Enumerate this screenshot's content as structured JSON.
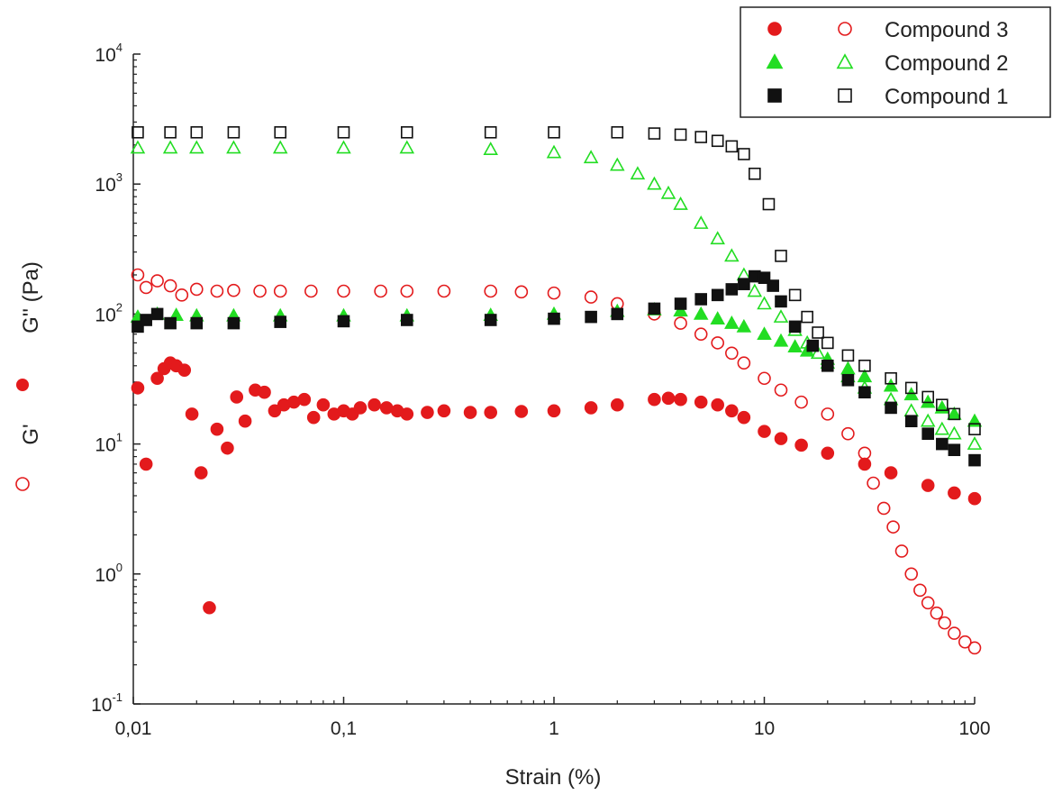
{
  "chart_data": {
    "type": "scatter",
    "xlabel": "Strain (%)",
    "ylabel_left_top": "G'' (Pa)",
    "ylabel_left_bottom": "G'",
    "xscale": "log",
    "yscale": "log",
    "xlim": [
      0.01,
      100
    ],
    "ylim": [
      0.1,
      10000
    ],
    "x_ticks": [
      {
        "value": 0.01,
        "label": "0,01"
      },
      {
        "value": 0.1,
        "label": "0,1"
      },
      {
        "value": 1,
        "label": "1"
      },
      {
        "value": 10,
        "label": "10"
      },
      {
        "value": 100,
        "label": "100"
      }
    ],
    "y_ticks": [
      {
        "value": 0.1,
        "base": "10",
        "exp": "-1"
      },
      {
        "value": 1,
        "base": "10",
        "exp": "0"
      },
      {
        "value": 10,
        "base": "10",
        "exp": "1"
      },
      {
        "value": 100,
        "base": "10",
        "exp": "2"
      },
      {
        "value": 1000,
        "base": "10",
        "exp": "3"
      },
      {
        "value": 10000,
        "base": "10",
        "exp": "4"
      }
    ],
    "grid": false,
    "legend_position": "top-right",
    "legend": [
      {
        "label": "Compound 3",
        "color": "#e31a1c",
        "shape": "circle"
      },
      {
        "label": "Compound 2",
        "color": "#22dd22",
        "shape": "triangle"
      },
      {
        "label": "Compound 1",
        "color": "#111111",
        "shape": "square"
      }
    ],
    "series": [
      {
        "compound": "Compound 3",
        "modulus": "G'",
        "color": "#e31a1c",
        "shape": "circle",
        "filled": true,
        "x": [
          0.0105,
          0.0115,
          0.013,
          0.014,
          0.015,
          0.016,
          0.0175,
          0.019,
          0.021,
          0.023,
          0.025,
          0.028,
          0.031,
          0.034,
          0.038,
          0.042,
          0.047,
          0.052,
          0.058,
          0.065,
          0.072,
          0.08,
          0.09,
          0.1,
          0.11,
          0.12,
          0.14,
          0.16,
          0.18,
          0.2,
          0.25,
          0.3,
          0.4,
          0.5,
          0.7,
          1,
          1.5,
          2,
          3,
          3.5,
          4,
          5,
          6,
          7,
          8,
          10,
          12,
          15,
          20,
          30,
          40,
          60,
          80,
          100
        ],
        "y": [
          27,
          7,
          32,
          38,
          42,
          40,
          37,
          17,
          6,
          0.55,
          13,
          9.3,
          23,
          15,
          26,
          25,
          18,
          20,
          21,
          22,
          16,
          20,
          17,
          18,
          17,
          19,
          20,
          19,
          18,
          17,
          17.5,
          18,
          17.5,
          17.5,
          17.8,
          18,
          19,
          20,
          22,
          22.5,
          22,
          21,
          20,
          18,
          16,
          12.5,
          11,
          9.8,
          8.5,
          7,
          6,
          4.8,
          4.2,
          3.8
        ]
      },
      {
        "compound": "Compound 3",
        "modulus": "G''",
        "color": "#e31a1c",
        "shape": "circle",
        "filled": false,
        "x": [
          0.0105,
          0.0115,
          0.013,
          0.015,
          0.017,
          0.02,
          0.025,
          0.03,
          0.04,
          0.05,
          0.07,
          0.1,
          0.15,
          0.2,
          0.3,
          0.5,
          0.7,
          1,
          1.5,
          2,
          3,
          4,
          5,
          6,
          7,
          8,
          10,
          12,
          15,
          20,
          25,
          30,
          33,
          37,
          41,
          45,
          50,
          55,
          60,
          66,
          72,
          80,
          90,
          100
        ],
        "y": [
          200,
          160,
          180,
          165,
          140,
          155,
          150,
          152,
          150,
          150,
          150,
          150,
          150,
          150,
          150,
          150,
          148,
          145,
          135,
          120,
          100,
          85,
          70,
          60,
          50,
          42,
          32,
          26,
          21,
          17,
          12,
          8.5,
          5,
          3.2,
          2.3,
          1.5,
          1,
          0.75,
          0.6,
          0.5,
          0.42,
          0.35,
          0.3,
          0.27
        ]
      },
      {
        "compound": "Compound 2",
        "modulus": "G'",
        "color": "#22dd22",
        "shape": "triangle",
        "filled": true,
        "x": [
          0.0105,
          0.013,
          0.016,
          0.02,
          0.03,
          0.05,
          0.1,
          0.2,
          0.5,
          1,
          2,
          3,
          4,
          5,
          6,
          7,
          8,
          10,
          12,
          14,
          16,
          20,
          25,
          30,
          40,
          50,
          60,
          70,
          80,
          100
        ],
        "y": [
          95,
          100,
          98,
          97,
          97,
          97,
          97,
          97,
          98,
          100,
          105,
          108,
          106,
          100,
          92,
          85,
          80,
          70,
          62,
          56,
          52,
          45,
          38,
          33,
          28,
          24,
          21,
          19,
          17,
          15
        ]
      },
      {
        "compound": "Compound 2",
        "modulus": "G''",
        "color": "#22dd22",
        "shape": "triangle",
        "filled": false,
        "x": [
          0.0105,
          0.015,
          0.02,
          0.03,
          0.05,
          0.1,
          0.2,
          0.5,
          1,
          1.5,
          2,
          2.5,
          3,
          3.5,
          4,
          5,
          6,
          7,
          8,
          9,
          10,
          12,
          14,
          16,
          18,
          20,
          25,
          30,
          40,
          50,
          60,
          70,
          80,
          100
        ],
        "y": [
          1900,
          1900,
          1900,
          1900,
          1900,
          1900,
          1900,
          1850,
          1750,
          1600,
          1400,
          1200,
          1000,
          850,
          700,
          500,
          380,
          280,
          200,
          150,
          120,
          95,
          75,
          60,
          50,
          42,
          33,
          27,
          22,
          18,
          15,
          13,
          12,
          10
        ]
      },
      {
        "compound": "Compound 1",
        "modulus": "G'",
        "color": "#111111",
        "shape": "square",
        "filled": true,
        "x": [
          0.0105,
          0.0115,
          0.013,
          0.015,
          0.02,
          0.03,
          0.05,
          0.1,
          0.2,
          0.5,
          1,
          1.5,
          2,
          3,
          4,
          5,
          6,
          7,
          8,
          9,
          10,
          11,
          12,
          14,
          17,
          20,
          25,
          30,
          40,
          50,
          60,
          70,
          80,
          100
        ],
        "y": [
          80,
          90,
          100,
          85,
          85,
          85,
          87,
          88,
          90,
          90,
          92,
          95,
          100,
          110,
          120,
          130,
          140,
          155,
          170,
          195,
          190,
          165,
          125,
          80,
          57,
          40,
          31,
          25,
          19,
          15,
          12,
          10,
          9,
          7.5
        ]
      },
      {
        "compound": "Compound 1",
        "modulus": "G''",
        "color": "#111111",
        "shape": "square",
        "filled": false,
        "x": [
          0.0105,
          0.015,
          0.02,
          0.03,
          0.05,
          0.1,
          0.2,
          0.5,
          1,
          2,
          3,
          4,
          5,
          6,
          7,
          8,
          9,
          10.5,
          12,
          14,
          16,
          18,
          20,
          25,
          30,
          40,
          50,
          60,
          70,
          80,
          100
        ],
        "y": [
          2500,
          2500,
          2500,
          2500,
          2500,
          2500,
          2500,
          2500,
          2500,
          2500,
          2450,
          2400,
          2300,
          2150,
          1950,
          1700,
          1200,
          700,
          280,
          140,
          95,
          72,
          60,
          48,
          40,
          32,
          27,
          23,
          20,
          17,
          13
        ]
      }
    ]
  }
}
